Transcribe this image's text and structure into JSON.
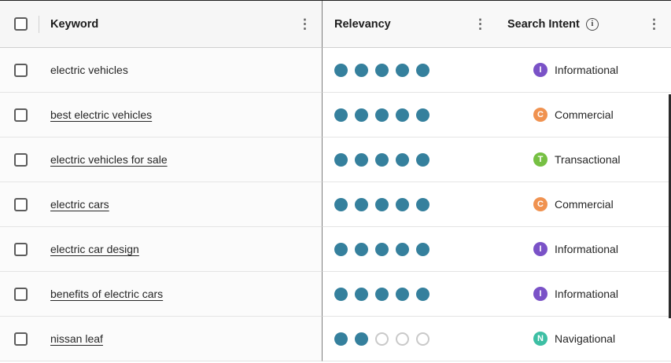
{
  "header": {
    "keyword_col": "Keyword",
    "relevancy_col": "Relevancy",
    "intent_col": "Search Intent",
    "menu_icon": "⋮",
    "info_icon": "i"
  },
  "relevancy": {
    "max_dots": 5
  },
  "colors": {
    "dot_filled": "#35809d",
    "dot_empty_border": "#c9c9c9"
  },
  "intent_types": {
    "Informational": {
      "letter": "I",
      "color": "#7a52c7"
    },
    "Commercial": {
      "letter": "C",
      "color": "#f09250"
    },
    "Transactional": {
      "letter": "T",
      "color": "#76c043"
    },
    "Navigational": {
      "letter": "N",
      "color": "#3dbfa4"
    }
  },
  "rows": [
    {
      "keyword": "electric vehicles",
      "underlined": false,
      "relevancy": 5,
      "intent": "Informational"
    },
    {
      "keyword": "best electric vehicles",
      "underlined": true,
      "relevancy": 5,
      "intent": "Commercial"
    },
    {
      "keyword": "electric vehicles for sale",
      "underlined": true,
      "relevancy": 5,
      "intent": "Transactional"
    },
    {
      "keyword": "electric cars",
      "underlined": true,
      "relevancy": 5,
      "intent": "Commercial"
    },
    {
      "keyword": "electric car design",
      "underlined": true,
      "relevancy": 5,
      "intent": "Informational"
    },
    {
      "keyword": "benefits of electric cars",
      "underlined": true,
      "relevancy": 5,
      "intent": "Informational"
    },
    {
      "keyword": "nissan leaf",
      "underlined": true,
      "relevancy": 2,
      "intent": "Navigational"
    }
  ]
}
